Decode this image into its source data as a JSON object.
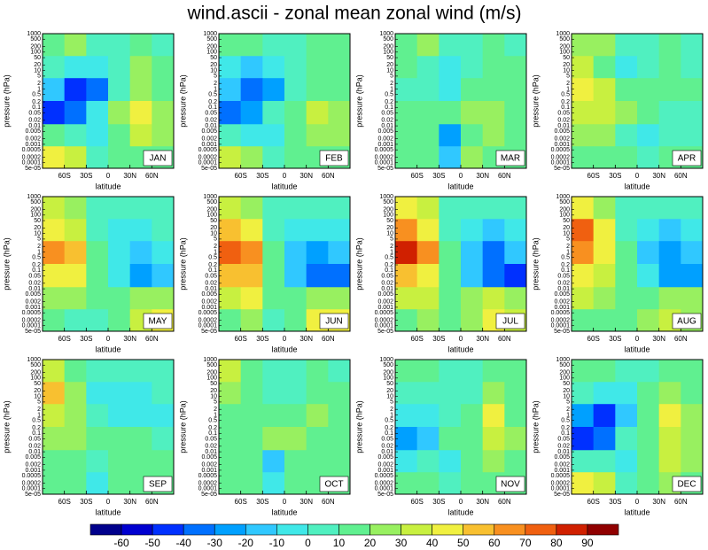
{
  "chart_data": {
    "type": "heatmap",
    "title": "wind.ascii - zonal mean zonal wind (m/s)",
    "xlabel": "latitude",
    "ylabel": "pressure (hPa)",
    "x": [
      -75,
      -45,
      -15,
      15,
      45,
      75
    ],
    "y": [
      250,
      15,
      1,
      0.05,
      0.003,
      0.0002
    ],
    "xlim": [
      -90,
      90
    ],
    "xticks": [
      {
        "value": -60,
        "label": "60S"
      },
      {
        "value": -30,
        "label": "30S"
      },
      0,
      {
        "value": 30,
        "label": "30N"
      },
      {
        "value": 60,
        "label": "60N"
      }
    ],
    "ylim": [
      1000,
      5e-05
    ],
    "ylog": true,
    "yticks": [
      {
        "value": 5e-05,
        "label": "5e-05"
      },
      0.0001,
      0.0002,
      0.0005,
      0.001,
      0.002,
      0.005,
      0.01,
      0.02,
      0.05,
      0.1,
      0.2,
      0.5,
      1,
      2,
      5,
      10,
      20,
      50,
      100,
      200,
      500,
      1000
    ],
    "levels": [
      -60,
      -50,
      -40,
      -30,
      -20,
      -10,
      0,
      10,
      20,
      30,
      40,
      50,
      60,
      70,
      80,
      90
    ],
    "colors": [
      "#00008c",
      "#0000d0",
      "#0030ff",
      "#0070ff",
      "#00a0ff",
      "#30c8ff",
      "#40e8e8",
      "#50f0c0",
      "#60f090",
      "#98f060",
      "#c8f040",
      "#f0f040",
      "#f8c030",
      "#f89020",
      "#f06010",
      "#d02000",
      "#900000"
    ],
    "panels": [
      {
        "label": "JAN",
        "values": [
          [
            10,
            20,
            5,
            5,
            10,
            5
          ],
          [
            0,
            -10,
            -10,
            5,
            20,
            10
          ],
          [
            -20,
            -50,
            -40,
            0,
            20,
            10
          ],
          [
            -50,
            -40,
            -10,
            20,
            40,
            20
          ],
          [
            10,
            0,
            -10,
            10,
            30,
            20
          ],
          [
            40,
            30,
            0,
            10,
            10,
            10
          ]
        ]
      },
      {
        "label": "FEB",
        "values": [
          [
            10,
            15,
            5,
            5,
            15,
            10
          ],
          [
            -5,
            -15,
            -10,
            5,
            15,
            10
          ],
          [
            -20,
            -40,
            -30,
            0,
            15,
            10
          ],
          [
            -40,
            -30,
            0,
            10,
            30,
            20
          ],
          [
            0,
            -10,
            -10,
            10,
            20,
            20
          ],
          [
            30,
            20,
            0,
            10,
            10,
            10
          ]
        ]
      },
      {
        "label": "MAR",
        "values": [
          [
            15,
            20,
            5,
            5,
            15,
            5
          ],
          [
            10,
            5,
            -10,
            5,
            15,
            10
          ],
          [
            5,
            5,
            -10,
            10,
            15,
            10
          ],
          [
            10,
            15,
            10,
            20,
            20,
            10
          ],
          [
            10,
            10,
            -30,
            10,
            20,
            10
          ],
          [
            10,
            10,
            -20,
            20,
            10,
            10
          ]
        ]
      },
      {
        "label": "APR",
        "values": [
          [
            20,
            20,
            5,
            5,
            10,
            5
          ],
          [
            30,
            15,
            -5,
            5,
            10,
            5
          ],
          [
            40,
            30,
            10,
            10,
            10,
            10
          ],
          [
            30,
            30,
            20,
            10,
            0,
            0
          ],
          [
            20,
            20,
            0,
            -10,
            0,
            5
          ],
          [
            10,
            10,
            10,
            0,
            10,
            10
          ]
        ]
      },
      {
        "label": "MAY",
        "values": [
          [
            30,
            20,
            5,
            5,
            5,
            5
          ],
          [
            40,
            30,
            0,
            -5,
            -5,
            0
          ],
          [
            60,
            50,
            10,
            -10,
            -20,
            -10
          ],
          [
            40,
            40,
            10,
            -10,
            -30,
            -20
          ],
          [
            20,
            20,
            10,
            10,
            20,
            20
          ],
          [
            10,
            0,
            0,
            10,
            30,
            40
          ]
        ]
      },
      {
        "label": "JUN",
        "values": [
          [
            30,
            25,
            5,
            5,
            5,
            0
          ],
          [
            50,
            40,
            0,
            -10,
            -10,
            -5
          ],
          [
            70,
            60,
            10,
            -20,
            -30,
            -20
          ],
          [
            50,
            50,
            10,
            -20,
            -40,
            -40
          ],
          [
            30,
            40,
            10,
            10,
            20,
            20
          ],
          [
            10,
            20,
            0,
            10,
            40,
            40
          ]
        ]
      },
      {
        "label": "JUL",
        "values": [
          [
            40,
            30,
            5,
            5,
            5,
            0
          ],
          [
            60,
            40,
            0,
            -10,
            -20,
            -5
          ],
          [
            80,
            60,
            10,
            -20,
            -40,
            -20
          ],
          [
            50,
            40,
            10,
            -20,
            -40,
            -50
          ],
          [
            30,
            30,
            10,
            20,
            30,
            20
          ],
          [
            10,
            20,
            10,
            20,
            40,
            30
          ]
        ]
      },
      {
        "label": "AUG",
        "values": [
          [
            40,
            25,
            5,
            5,
            5,
            0
          ],
          [
            70,
            40,
            0,
            -10,
            -15,
            -5
          ],
          [
            60,
            40,
            10,
            -20,
            -30,
            -20
          ],
          [
            40,
            30,
            10,
            -10,
            -30,
            -30
          ],
          [
            30,
            20,
            10,
            10,
            20,
            20
          ],
          [
            10,
            10,
            10,
            20,
            30,
            20
          ]
        ]
      },
      {
        "label": "SEP",
        "values": [
          [
            30,
            15,
            5,
            5,
            5,
            5
          ],
          [
            50,
            20,
            -5,
            -10,
            -5,
            0
          ],
          [
            30,
            20,
            5,
            -5,
            -10,
            -5
          ],
          [
            20,
            20,
            10,
            10,
            10,
            5
          ],
          [
            10,
            10,
            0,
            10,
            10,
            10
          ],
          [
            10,
            10,
            -10,
            10,
            10,
            10
          ]
        ]
      },
      {
        "label": "OCT",
        "values": [
          [
            30,
            15,
            5,
            5,
            10,
            5
          ],
          [
            20,
            15,
            0,
            5,
            10,
            10
          ],
          [
            15,
            10,
            10,
            10,
            20,
            10
          ],
          [
            10,
            10,
            20,
            20,
            10,
            10
          ],
          [
            10,
            10,
            -20,
            10,
            10,
            10
          ],
          [
            10,
            10,
            -10,
            10,
            10,
            10
          ]
        ]
      },
      {
        "label": "NOV",
        "values": [
          [
            10,
            15,
            5,
            5,
            15,
            10
          ],
          [
            0,
            0,
            0,
            5,
            20,
            10
          ],
          [
            -10,
            -10,
            0,
            10,
            40,
            10
          ],
          [
            -30,
            -20,
            10,
            10,
            30,
            20
          ],
          [
            -10,
            0,
            -10,
            10,
            20,
            10
          ],
          [
            10,
            10,
            0,
            10,
            10,
            10
          ]
        ]
      },
      {
        "label": "DEC",
        "values": [
          [
            10,
            15,
            5,
            5,
            15,
            10
          ],
          [
            0,
            -10,
            -5,
            10,
            20,
            10
          ],
          [
            -30,
            -50,
            -20,
            10,
            40,
            20
          ],
          [
            -50,
            -40,
            0,
            10,
            30,
            20
          ],
          [
            0,
            0,
            -10,
            10,
            30,
            20
          ],
          [
            40,
            30,
            0,
            10,
            20,
            10
          ]
        ]
      }
    ]
  }
}
